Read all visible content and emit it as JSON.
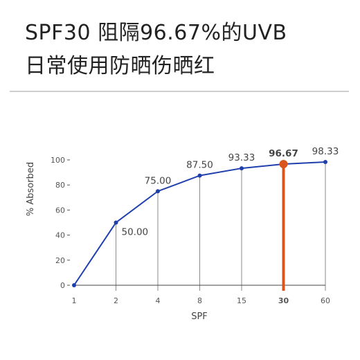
{
  "title_line1": "SPF30 阻隔96.67%的UVB",
  "title_line2": "日常使用防晒伤晒红",
  "chart_data": {
    "type": "line",
    "categories": [
      "1",
      "2",
      "4",
      "8",
      "15",
      "30",
      "60"
    ],
    "values": [
      0,
      50.0,
      75.0,
      87.5,
      93.33,
      96.67,
      98.33
    ],
    "data_labels": [
      "",
      "50.00",
      "75.00",
      "87.50",
      "93.33",
      "96.67",
      "98.33"
    ],
    "xlabel": "SPF",
    "ylabel": "% Absorbed",
    "ylim": [
      0,
      100
    ],
    "yticks": [
      0,
      20,
      40,
      60,
      80,
      100
    ],
    "highlight_index": 5,
    "line_color": "#1f3fad",
    "highlight_color": "#d9541e",
    "gridline_color": "#8a8a8a",
    "grid": "vertical"
  }
}
